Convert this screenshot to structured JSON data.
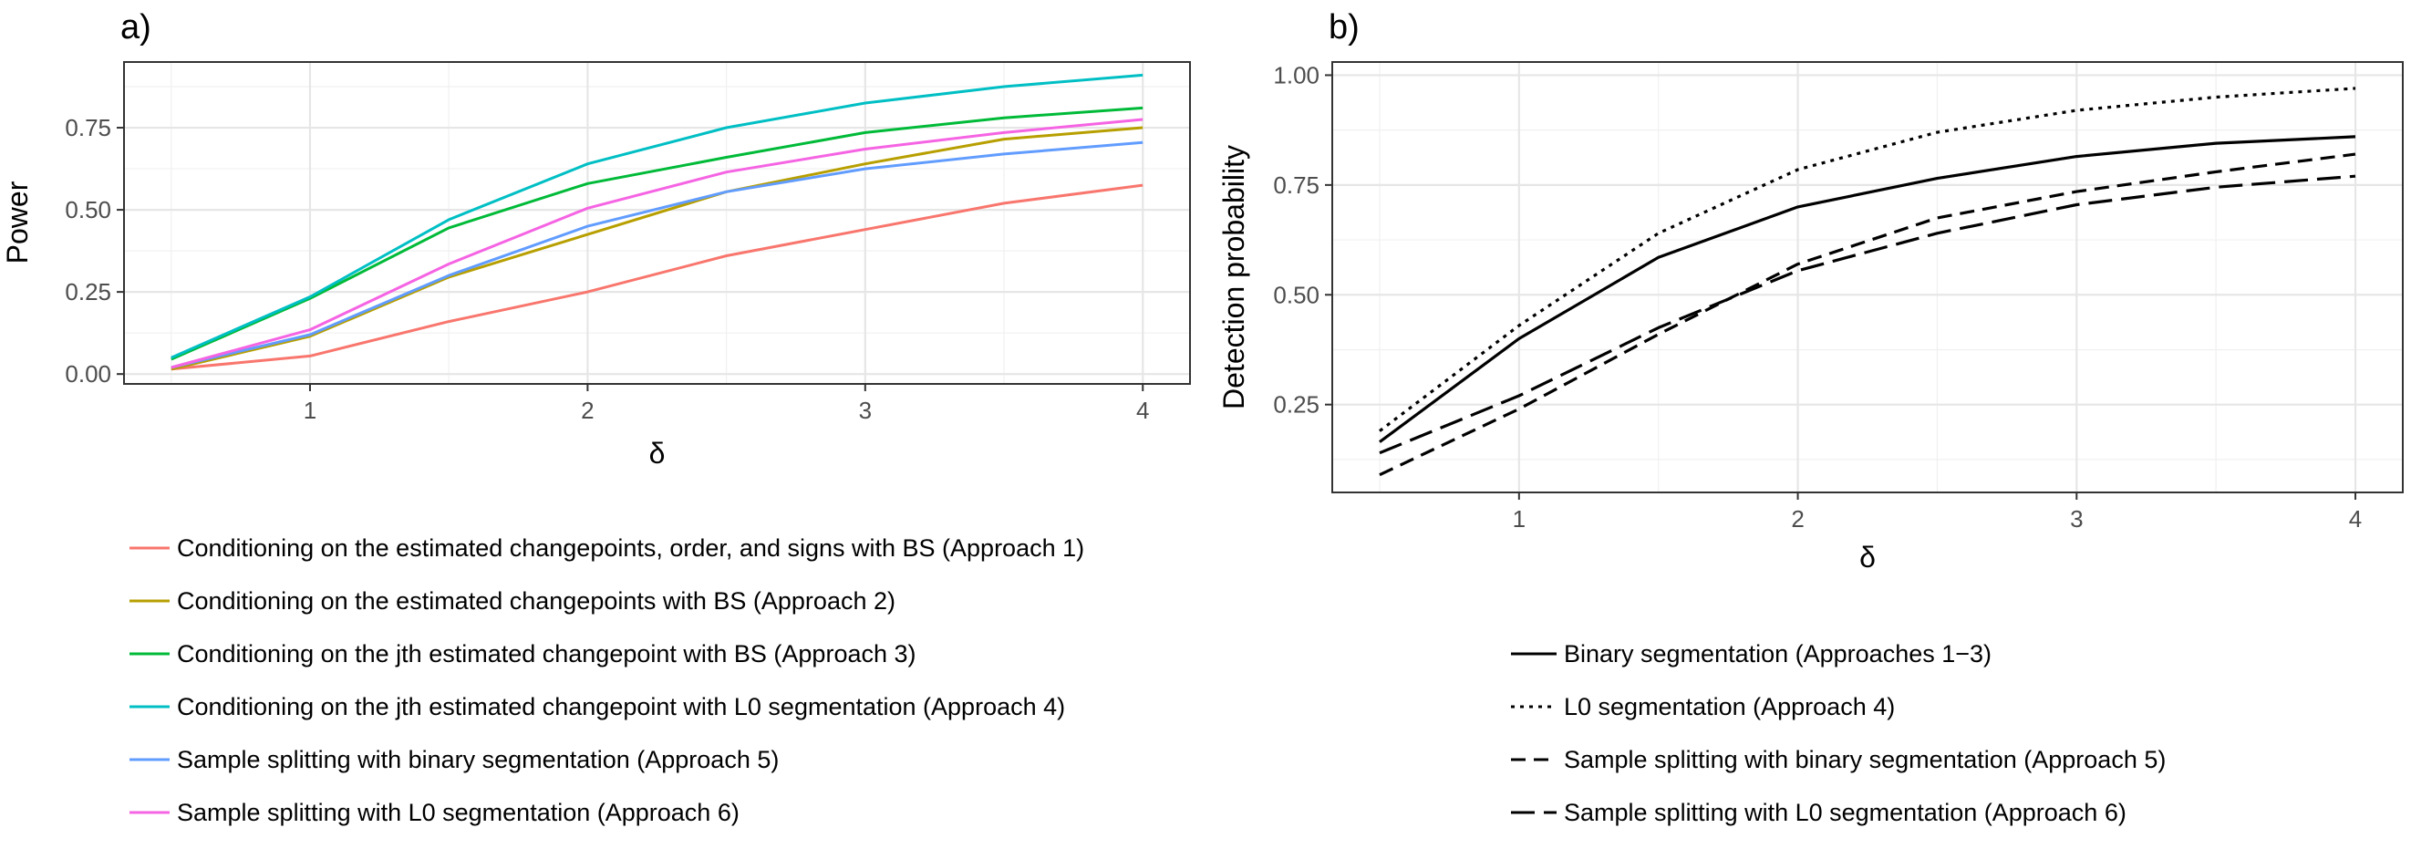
{
  "chart_data": [
    {
      "type": "line",
      "panel_label": "a)",
      "xlabel": "δ",
      "ylabel": "Power",
      "x": [
        0.5,
        1,
        1.5,
        2,
        2.5,
        3,
        3.5,
        4
      ],
      "xticks": [
        1,
        2,
        3,
        4
      ],
      "yticks": [
        "0.00",
        "0.25",
        "0.50",
        "0.75"
      ],
      "xlim": [
        0.33,
        4.17
      ],
      "ylim": [
        -0.03,
        0.95
      ],
      "grid": true,
      "legend_position": "bottom",
      "series": [
        {
          "name": "Conditioning on the estimated changepoints, order, and signs with BS (Approach 1)",
          "color": "#F8766D",
          "dash": "solid",
          "values": [
            0.015,
            0.055,
            0.16,
            0.25,
            0.36,
            0.44,
            0.52,
            0.575
          ]
        },
        {
          "name": "Conditioning on the estimated changepoints with BS (Approach 2)",
          "color": "#B79F00",
          "dash": "solid",
          "values": [
            0.015,
            0.115,
            0.295,
            0.425,
            0.555,
            0.64,
            0.715,
            0.75
          ]
        },
        {
          "name": "Conditioning on the jth estimated changepoint with BS (Approach 3)",
          "color": "#00BA38",
          "dash": "solid",
          "values": [
            0.045,
            0.23,
            0.445,
            0.58,
            0.66,
            0.735,
            0.78,
            0.81
          ]
        },
        {
          "name": "Conditioning on the jth estimated changepoint with L0 segmentation (Approach 4)",
          "color": "#00BFC4",
          "dash": "solid",
          "values": [
            0.05,
            0.235,
            0.47,
            0.64,
            0.75,
            0.825,
            0.875,
            0.91
          ]
        },
        {
          "name": "Sample splitting with binary segmentation (Approach 5)",
          "color": "#619CFF",
          "dash": "solid",
          "values": [
            0.02,
            0.12,
            0.3,
            0.45,
            0.555,
            0.625,
            0.67,
            0.705
          ]
        },
        {
          "name": "Sample splitting with L0 segmentation (Approach 6)",
          "color": "#F564E3",
          "dash": "solid",
          "values": [
            0.02,
            0.135,
            0.335,
            0.505,
            0.615,
            0.685,
            0.735,
            0.775
          ]
        }
      ]
    },
    {
      "type": "line",
      "panel_label": "b)",
      "xlabel": "δ",
      "ylabel": "Detection probability",
      "x": [
        0.5,
        1,
        1.5,
        2,
        2.5,
        3,
        3.5,
        4
      ],
      "xticks": [
        1,
        2,
        3,
        4
      ],
      "yticks": [
        "0.25",
        "0.50",
        "0.75",
        "1.00"
      ],
      "xlim": [
        0.33,
        4.17
      ],
      "ylim": [
        0.05,
        1.03
      ],
      "grid": true,
      "legend_position": "bottom",
      "series": [
        {
          "name": "Binary segmentation (Approaches 1−3)",
          "color": "#000000",
          "dash": "solid",
          "values": [
            0.165,
            0.4,
            0.585,
            0.7,
            0.765,
            0.815,
            0.845,
            0.86
          ]
        },
        {
          "name": "L0 segmentation (Approach 4)",
          "color": "#000000",
          "dash": "dotted",
          "values": [
            0.19,
            0.43,
            0.64,
            0.785,
            0.87,
            0.92,
            0.95,
            0.97
          ]
        },
        {
          "name": "Sample splitting with binary segmentation (Approach 5)",
          "color": "#000000",
          "dash": "dashed",
          "values": [
            0.09,
            0.24,
            0.41,
            0.57,
            0.675,
            0.735,
            0.78,
            0.82
          ]
        },
        {
          "name": "Sample splitting with L0 segmentation (Approach 6)",
          "color": "#000000",
          "dash": "longdash",
          "values": [
            0.14,
            0.27,
            0.425,
            0.555,
            0.64,
            0.705,
            0.745,
            0.77
          ]
        }
      ]
    }
  ]
}
